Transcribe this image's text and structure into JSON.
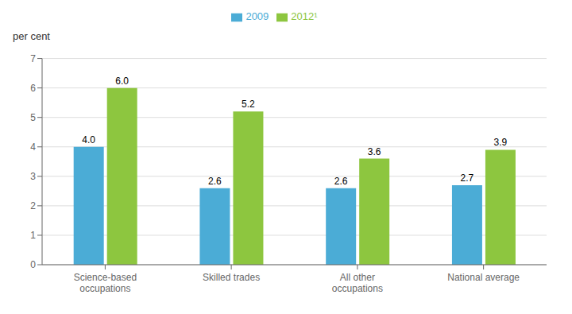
{
  "chart_data": {
    "type": "bar",
    "ylabel": "per cent",
    "categories": [
      "Science-based\noccupations",
      "Skilled trades",
      "All other\noccupations",
      "National average"
    ],
    "series": [
      {
        "name": "2009",
        "color": "#4bacd6",
        "values": [
          4.0,
          2.6,
          2.6,
          2.7
        ],
        "value_labels": [
          "4.0",
          "2.6",
          "2.6",
          "2.7"
        ]
      },
      {
        "name": "2012¹",
        "color": "#8dc63f",
        "values": [
          6.0,
          5.2,
          3.6,
          3.9
        ],
        "value_labels": [
          "6.0",
          "5.2",
          "3.6",
          "3.9"
        ]
      }
    ],
    "ylim": [
      0,
      7
    ],
    "yticks": [
      0,
      1,
      2,
      3,
      4,
      5,
      6,
      7
    ],
    "grid": true,
    "data_labels": true,
    "legend": "top"
  }
}
